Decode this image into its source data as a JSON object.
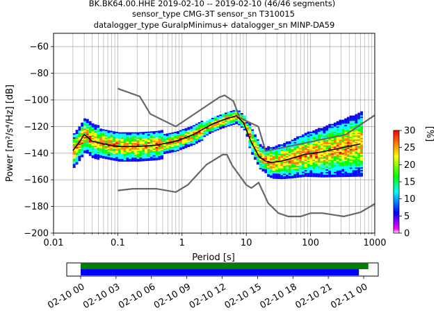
{
  "header": {
    "line1": "BK.BK64.00.HHE   2019-02-10 -- 2019-02-10  (46/46 segments)",
    "line2": "sensor_type CMG-3T sensor_sn T310015",
    "line3": "datalogger_type GuralpMinimus+ datalogger_sn MINP-DA59"
  },
  "chart_data": [
    {
      "type": "heatmap",
      "xlabel": "Period [s]",
      "ylabel": "Power [m²/s⁴/Hz] [dB]",
      "xscale": "log",
      "xlim": [
        0.01,
        1000
      ],
      "ylim": [
        -200,
        -50
      ],
      "x_ticks": [
        "0.01",
        "0.1",
        "1",
        "10",
        "100",
        "1000"
      ],
      "y_ticks": [
        "-60",
        "-80",
        "-100",
        "-120",
        "-140",
        "-160",
        "-180",
        "-200"
      ],
      "grid": true,
      "colorbar": {
        "label": "[%]",
        "range": [
          0,
          30
        ],
        "ticks": [
          "0",
          "5",
          "10",
          "15",
          "20",
          "25",
          "30"
        ],
        "colors": [
          "#ff00ff",
          "#0000ff",
          "#00ffff",
          "#00ff00",
          "#ffff00",
          "#ff8000",
          "#ff0000"
        ]
      },
      "noise_models": [
        {
          "name": "NHNM",
          "x": [
            0.1,
            0.22,
            0.32,
            0.8,
            3.8,
            4.6,
            6.3,
            7.9,
            15.4,
            20,
            354.8,
            1000
          ],
          "y": [
            -91.5,
            -97.4,
            -110.5,
            -120,
            -98,
            -96.5,
            -101,
            -113.5,
            -120,
            -138.5,
            -126,
            -111.5
          ]
        },
        {
          "name": "NLNM",
          "x": [
            0.1,
            0.17,
            0.4,
            0.8,
            1.24,
            2.4,
            4.3,
            5,
            6,
            10,
            12,
            15.6,
            21.9,
            31.6,
            45,
            70,
            101,
            154,
            328,
            600,
            1000
          ],
          "y": [
            -168,
            -166.7,
            -166.7,
            -169.2,
            -163.7,
            -148.6,
            -141.1,
            -141.1,
            -149,
            -163.8,
            -166.2,
            -162.1,
            -177.5,
            -185,
            -187.5,
            -187.5,
            -185,
            -185,
            -187.5,
            -184.4,
            -178
          ]
        }
      ],
      "mode_curve": {
        "x": [
          0.02,
          0.025,
          0.03,
          0.04,
          0.06,
          0.1,
          0.2,
          0.4,
          0.8,
          1.5,
          3,
          5,
          7,
          9,
          12,
          16,
          20,
          25,
          35,
          50,
          80,
          150,
          300,
          600
        ],
        "y": [
          -138,
          -132,
          -126,
          -131,
          -133,
          -135,
          -135,
          -134,
          -131,
          -126,
          -118,
          -114,
          -112,
          -117,
          -132,
          -143,
          -146,
          -147,
          -146,
          -144,
          -141,
          -139,
          -136,
          -133
        ]
      },
      "segments": {
        "count": 46,
        "total": 46
      }
    },
    {
      "type": "timeline",
      "x_ticks": [
        "02-10 00",
        "02-10 03",
        "02-10 06",
        "02-10 09",
        "02-10 12",
        "02-10 15",
        "02-10 18",
        "02-10 21",
        "02-11 00"
      ],
      "bars": [
        {
          "color": "#008000",
          "start_hours": 0,
          "end_hours": 24.4
        },
        {
          "color": "#0000ff",
          "start_hours": 0,
          "end_hours": 23.6
        }
      ]
    }
  ]
}
